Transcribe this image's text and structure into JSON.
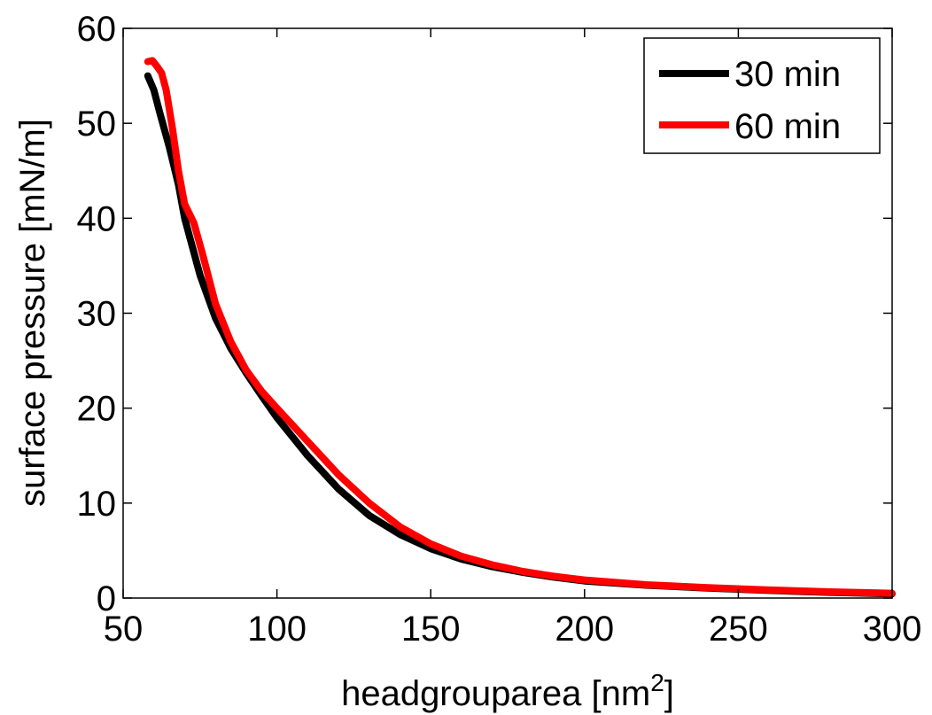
{
  "chart_data": {
    "type": "line",
    "title": "",
    "xlabel": "headgrouparea [nm",
    "xlabel_superscript": "2",
    "xlabel_suffix": "]",
    "ylabel": "surface pressure [mN/m]",
    "xlim": [
      50,
      300
    ],
    "ylim": [
      0,
      60
    ],
    "xticks": [
      50,
      100,
      150,
      200,
      250,
      300
    ],
    "yticks": [
      0,
      10,
      20,
      30,
      40,
      50,
      60
    ],
    "xtick_labels": [
      "50",
      "100",
      "150",
      "200",
      "250",
      "300"
    ],
    "ytick_labels": [
      "0",
      "10",
      "20",
      "30",
      "40",
      "50",
      "60"
    ],
    "grid": false,
    "legend_position": "top-right",
    "series": [
      {
        "name": "30 min",
        "color": "#000000",
        "x": [
          58,
          60,
          62,
          65,
          68,
          70,
          75,
          80,
          85,
          90,
          95,
          100,
          110,
          120,
          130,
          140,
          150,
          160,
          170,
          180,
          190,
          200,
          220,
          240,
          260,
          280,
          300
        ],
        "y": [
          55,
          53.5,
          51,
          47.5,
          43.5,
          40,
          34,
          29.5,
          26.3,
          23.7,
          21.3,
          19,
          15,
          11.5,
          8.7,
          6.7,
          5.2,
          4.1,
          3.3,
          2.7,
          2.2,
          1.8,
          1.35,
          1.05,
          0.8,
          0.6,
          0.45
        ]
      },
      {
        "name": "60 min",
        "color": "#ff0000",
        "x": [
          58,
          59.5,
          61,
          62.5,
          64,
          66,
          68,
          70,
          73,
          76,
          80,
          85,
          90,
          95,
          100,
          110,
          120,
          130,
          140,
          150,
          160,
          170,
          180,
          190,
          200,
          220,
          240,
          260,
          280,
          300
        ],
        "y": [
          56.5,
          56.6,
          56,
          55.3,
          53.5,
          49.5,
          45,
          41.5,
          39.5,
          36,
          31,
          27,
          24,
          21.8,
          20,
          16.5,
          13,
          10,
          7.5,
          5.7,
          4.4,
          3.5,
          2.8,
          2.3,
          1.9,
          1.4,
          1.1,
          0.85,
          0.65,
          0.5
        ]
      }
    ]
  }
}
